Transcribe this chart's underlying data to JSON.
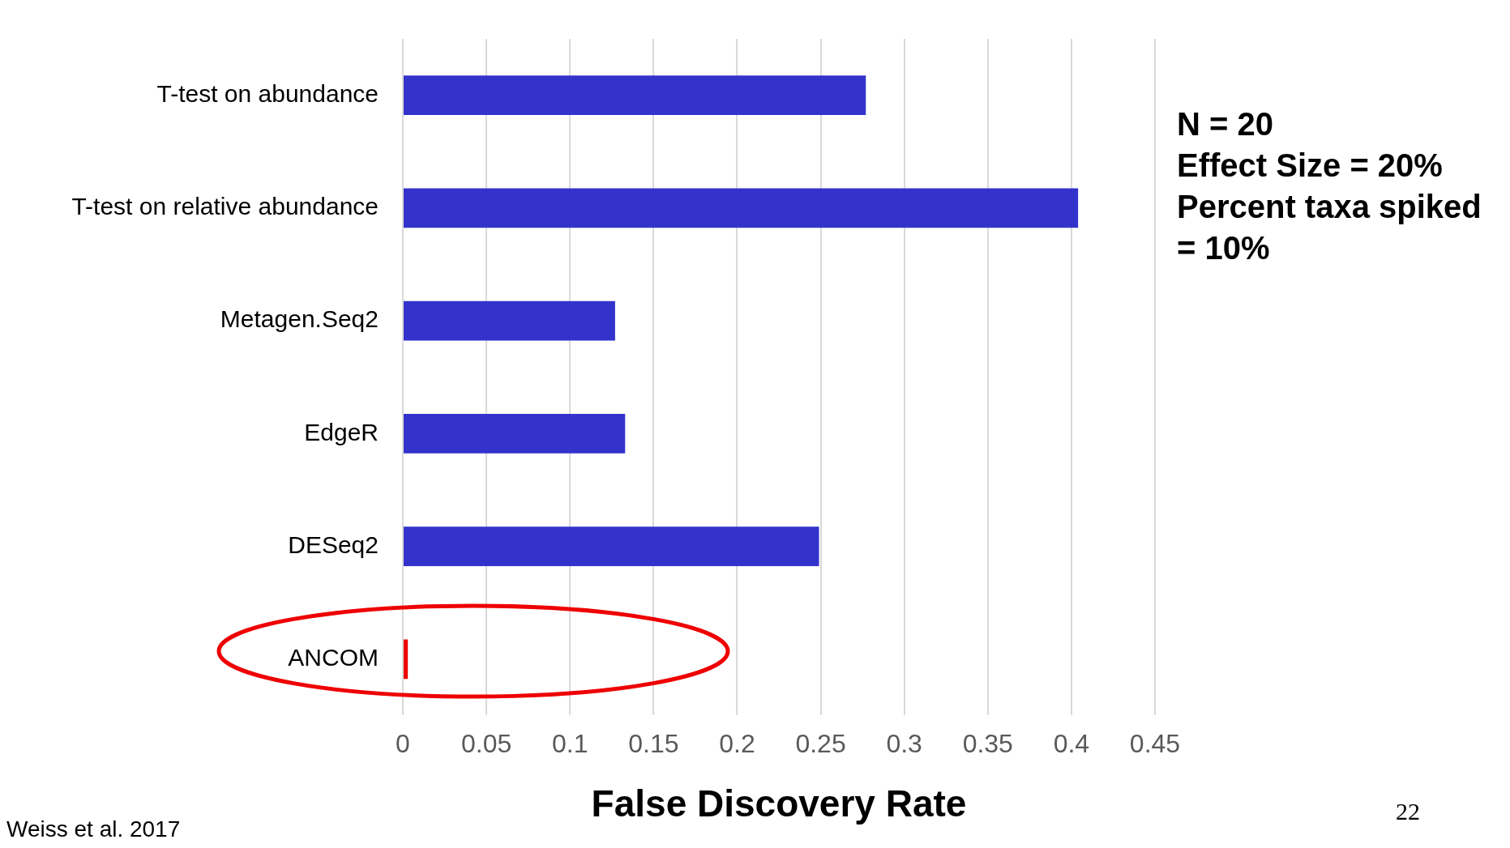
{
  "chart_data": {
    "type": "bar",
    "orientation": "horizontal",
    "categories": [
      "T-test on abundance",
      "T-test on relative abundance",
      "Metagen.Seq2",
      "EdgeR",
      "DESeq2",
      "ANCOM"
    ],
    "values": [
      0.277,
      0.404,
      0.127,
      0.133,
      0.249,
      0.003
    ],
    "colors": [
      "#3333cc",
      "#3333cc",
      "#3333cc",
      "#3333cc",
      "#3333cc",
      "#ee0000"
    ],
    "xlim": [
      0,
      0.45
    ],
    "xticks": [
      0,
      0.05,
      0.1,
      0.15,
      0.2,
      0.25,
      0.3,
      0.35,
      0.4,
      0.45
    ],
    "xlabel": "False Discovery Rate",
    "grid": "x",
    "legend": false,
    "annotations": [
      "N = 20",
      "Effect Size = 20%",
      "Percent taxa spiked = 10%",
      "Weiss et al. 2017",
      "22"
    ]
  }
}
